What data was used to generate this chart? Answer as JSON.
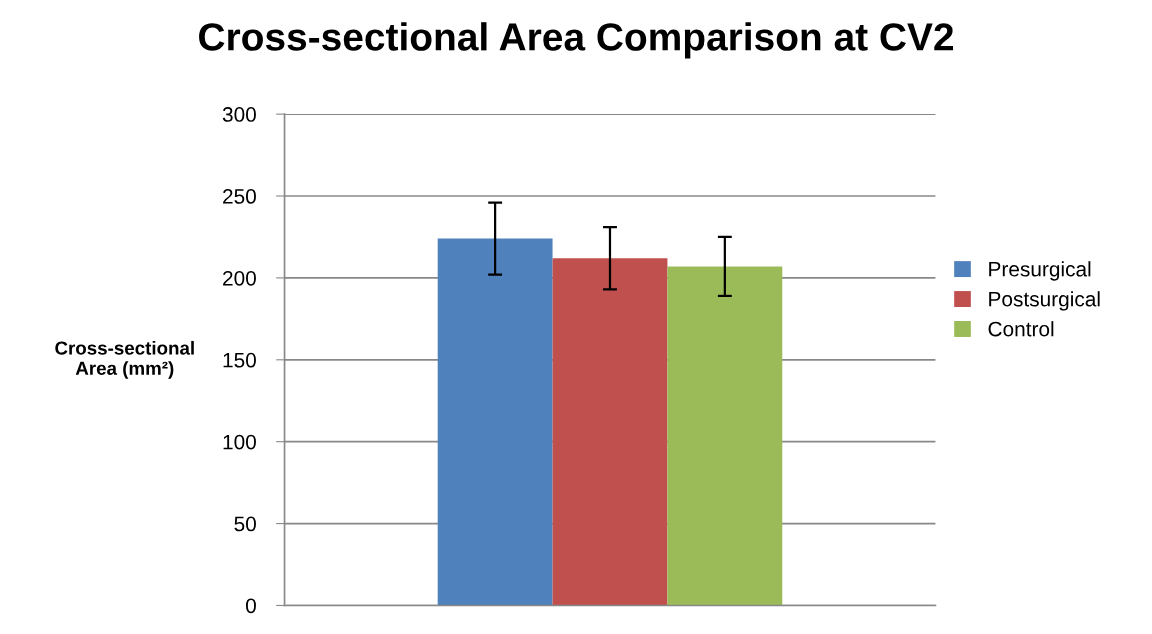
{
  "chart_data": {
    "type": "bar",
    "title": "Cross-sectional Area Comparison at CV2",
    "ylabel": "Cross-sectional\nArea (mm²)",
    "categories": [
      null
    ],
    "series": [
      {
        "name": "Presurgical",
        "color": "#4f81bd",
        "values": [
          224
        ],
        "errors": [
          22
        ]
      },
      {
        "name": "Postsurgical",
        "color": "#c0504d",
        "values": [
          212
        ],
        "errors": [
          19
        ]
      },
      {
        "name": "Control",
        "color": "#9bbb59",
        "values": [
          207
        ],
        "errors": [
          18
        ]
      }
    ],
    "ylim": [
      0,
      300
    ],
    "yticks": [
      0,
      50,
      100,
      150,
      200,
      250,
      300
    ],
    "grid": "y",
    "legend": "right"
  }
}
